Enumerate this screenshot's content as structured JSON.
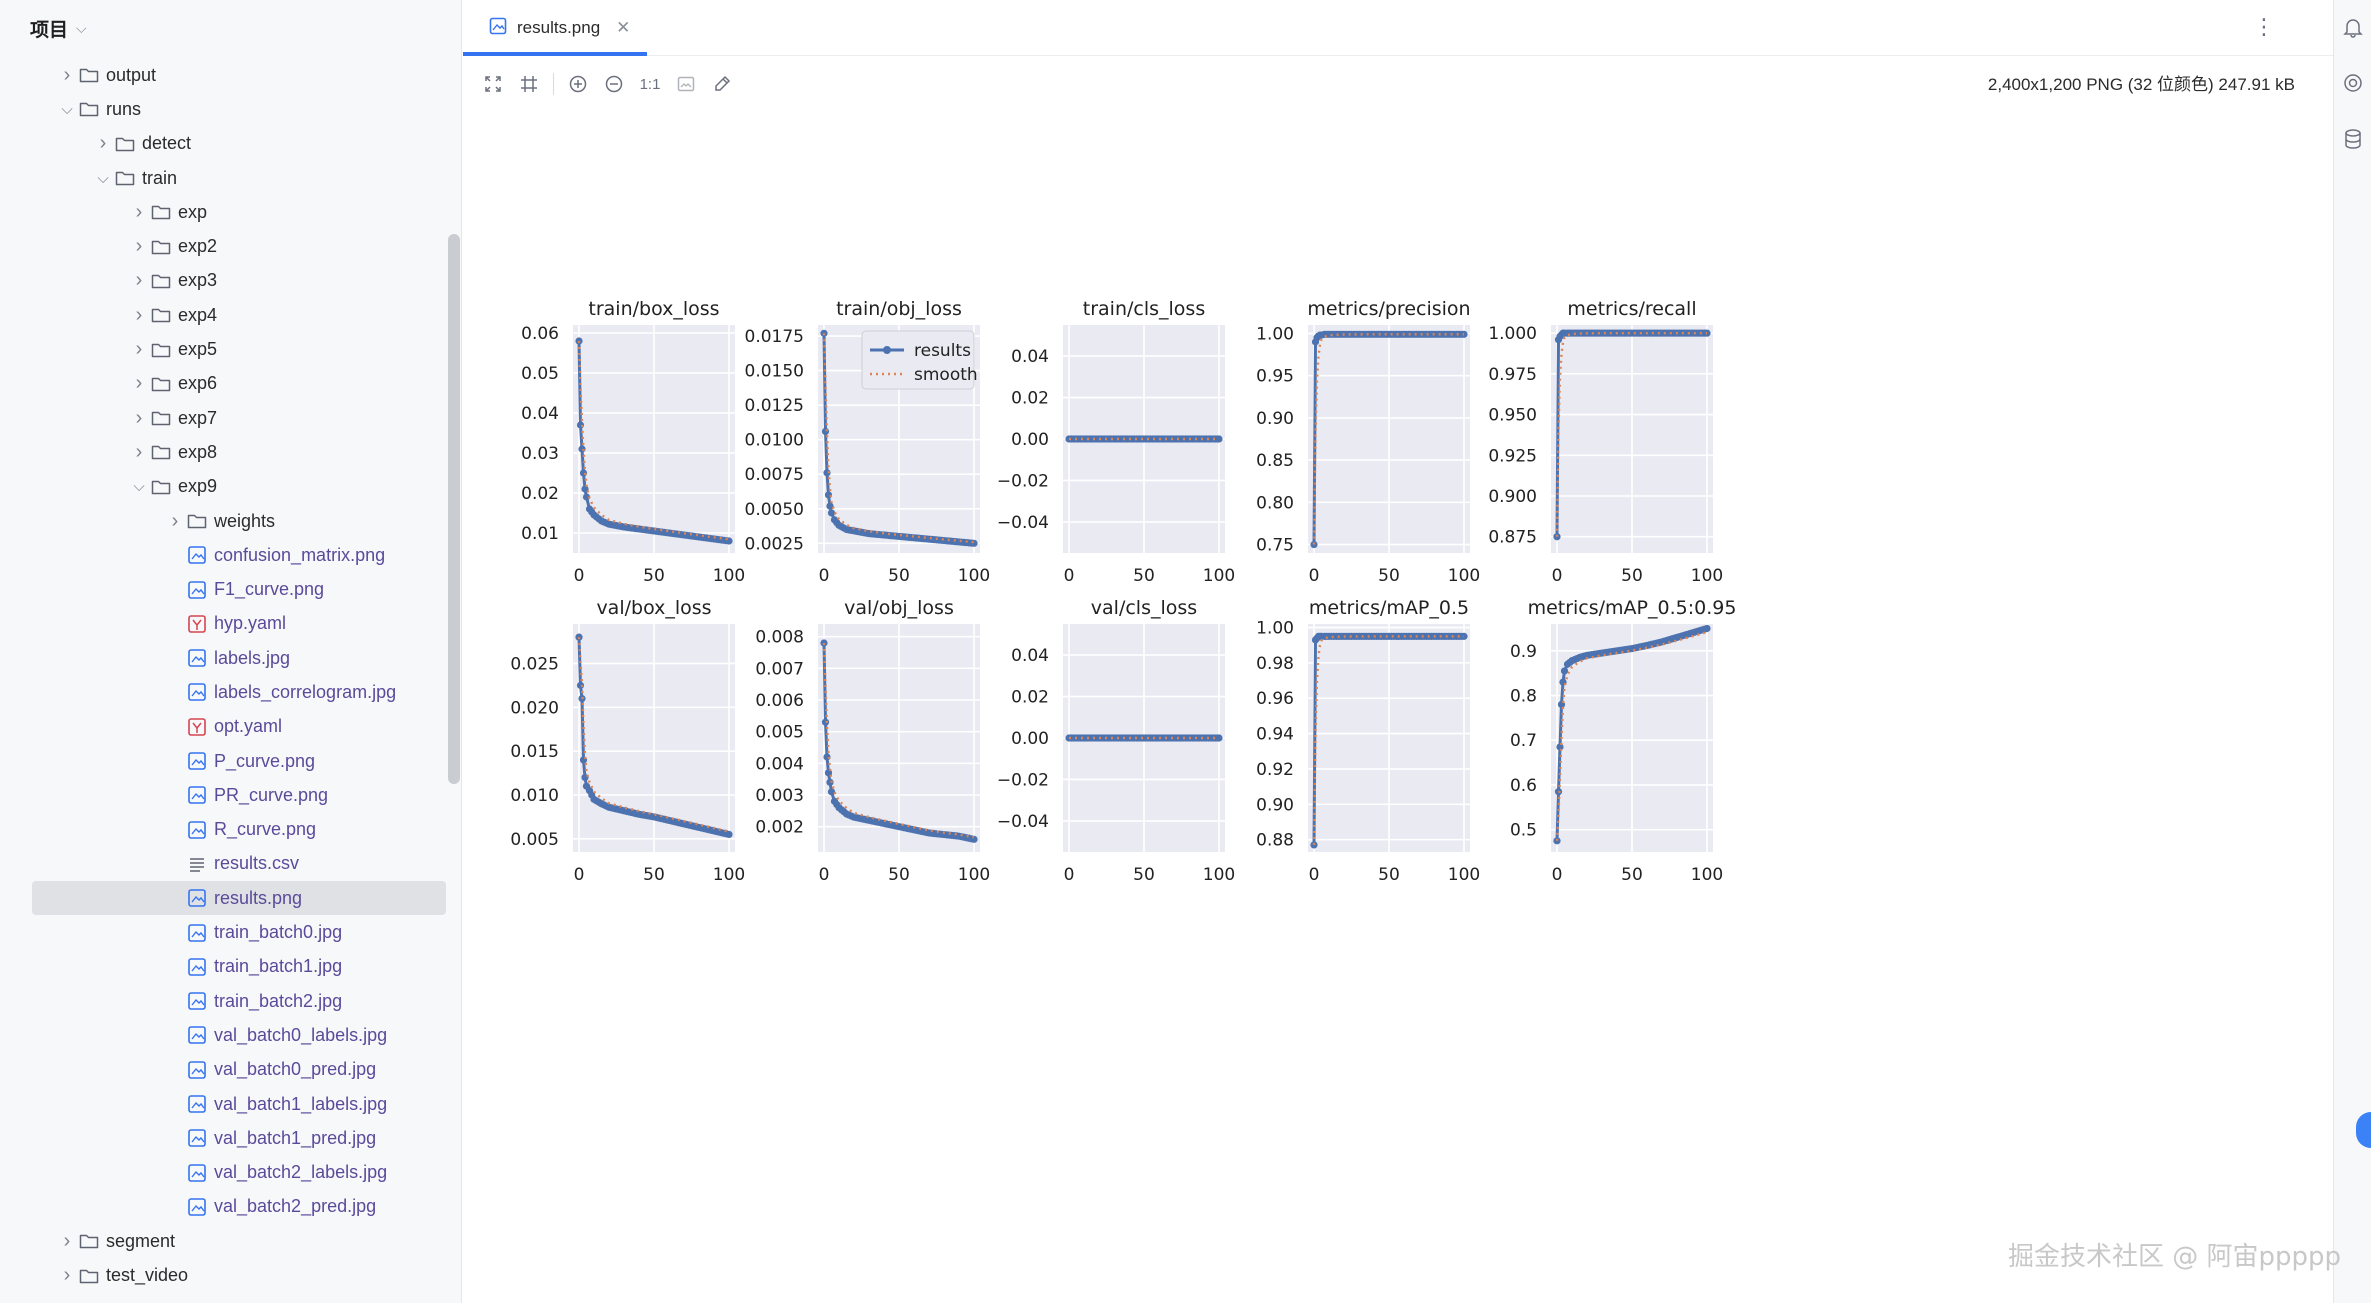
{
  "project": {
    "title": "项目"
  },
  "tree": [
    {
      "label": "output",
      "type": "folder",
      "depth": 0,
      "expanded": false
    },
    {
      "label": "runs",
      "type": "folder",
      "depth": 0,
      "expanded": true
    },
    {
      "label": "detect",
      "type": "folder",
      "depth": 1,
      "expanded": false
    },
    {
      "label": "train",
      "type": "folder",
      "depth": 1,
      "expanded": true
    },
    {
      "label": "exp",
      "type": "folder",
      "depth": 2,
      "expanded": false
    },
    {
      "label": "exp2",
      "type": "folder",
      "depth": 2,
      "expanded": false
    },
    {
      "label": "exp3",
      "type": "folder",
      "depth": 2,
      "expanded": false
    },
    {
      "label": "exp4",
      "type": "folder",
      "depth": 2,
      "expanded": false
    },
    {
      "label": "exp5",
      "type": "folder",
      "depth": 2,
      "expanded": false
    },
    {
      "label": "exp6",
      "type": "folder",
      "depth": 2,
      "expanded": false
    },
    {
      "label": "exp7",
      "type": "folder",
      "depth": 2,
      "expanded": false
    },
    {
      "label": "exp8",
      "type": "folder",
      "depth": 2,
      "expanded": false
    },
    {
      "label": "exp9",
      "type": "folder",
      "depth": 2,
      "expanded": true
    },
    {
      "label": "weights",
      "type": "folder",
      "depth": 3,
      "expanded": false
    },
    {
      "label": "confusion_matrix.png",
      "type": "image",
      "depth": 3
    },
    {
      "label": "F1_curve.png",
      "type": "image",
      "depth": 3
    },
    {
      "label": "hyp.yaml",
      "type": "yaml",
      "depth": 3
    },
    {
      "label": "labels.jpg",
      "type": "image",
      "depth": 3
    },
    {
      "label": "labels_correlogram.jpg",
      "type": "image",
      "depth": 3
    },
    {
      "label": "opt.yaml",
      "type": "yaml",
      "depth": 3
    },
    {
      "label": "P_curve.png",
      "type": "image",
      "depth": 3
    },
    {
      "label": "PR_curve.png",
      "type": "image",
      "depth": 3
    },
    {
      "label": "R_curve.png",
      "type": "image",
      "depth": 3
    },
    {
      "label": "results.csv",
      "type": "text",
      "depth": 3
    },
    {
      "label": "results.png",
      "type": "image",
      "depth": 3,
      "selected": true
    },
    {
      "label": "train_batch0.jpg",
      "type": "image",
      "depth": 3
    },
    {
      "label": "train_batch1.jpg",
      "type": "image",
      "depth": 3
    },
    {
      "label": "train_batch2.jpg",
      "type": "image",
      "depth": 3
    },
    {
      "label": "val_batch0_labels.jpg",
      "type": "image",
      "depth": 3
    },
    {
      "label": "val_batch0_pred.jpg",
      "type": "image",
      "depth": 3
    },
    {
      "label": "val_batch1_labels.jpg",
      "type": "image",
      "depth": 3
    },
    {
      "label": "val_batch1_pred.jpg",
      "type": "image",
      "depth": 3
    },
    {
      "label": "val_batch2_labels.jpg",
      "type": "image",
      "depth": 3
    },
    {
      "label": "val_batch2_pred.jpg",
      "type": "image",
      "depth": 3
    },
    {
      "label": "segment",
      "type": "folder",
      "depth": 0,
      "expanded": false
    },
    {
      "label": "test_video",
      "type": "folder",
      "depth": 0,
      "expanded": false
    }
  ],
  "editor": {
    "tab_label": "results.png",
    "image_info": "2,400x1,200 PNG (32 位颜色) 247.91 kB",
    "zoom_label": "1:1"
  },
  "watermark": "掘金技术社区 @ 阿宙ppppp",
  "colors": {
    "accent": "#3574f0",
    "series": "#4c72b0",
    "smooth": "#dd8452",
    "plot_bg": "#eaeaf2"
  },
  "chart_data": [
    {
      "type": "line",
      "title": "train/box_loss",
      "xlim": [
        0,
        100
      ],
      "xticks": [
        0,
        50,
        100
      ],
      "ylim": [
        0.005,
        0.062
      ],
      "yticks": [
        "0.01",
        "0.02",
        "0.03",
        "0.04",
        "0.05",
        "0.06"
      ],
      "ytick_values": [
        0.01,
        0.02,
        0.03,
        0.04,
        0.05,
        0.06
      ],
      "x": [
        0,
        1,
        2,
        3,
        4,
        5,
        7,
        10,
        15,
        20,
        30,
        40,
        50,
        60,
        70,
        80,
        90,
        100
      ],
      "y": [
        0.058,
        0.037,
        0.031,
        0.025,
        0.021,
        0.019,
        0.016,
        0.0145,
        0.013,
        0.0122,
        0.0115,
        0.011,
        0.0105,
        0.01,
        0.0095,
        0.009,
        0.0085,
        0.008
      ],
      "legend": false
    },
    {
      "type": "line",
      "title": "train/obj_loss",
      "xlim": [
        0,
        100
      ],
      "xticks": [
        0,
        50,
        100
      ],
      "ylim": [
        0.0018,
        0.0183
      ],
      "yticks": [
        "0.0025",
        "0.0050",
        "0.0075",
        "0.0100",
        "0.0125",
        "0.0150",
        "0.0175"
      ],
      "ytick_values": [
        0.0025,
        0.005,
        0.0075,
        0.01,
        0.0125,
        0.015,
        0.0175
      ],
      "x": [
        0,
        1,
        2,
        3,
        4,
        5,
        7,
        10,
        15,
        20,
        30,
        40,
        50,
        60,
        70,
        80,
        90,
        100
      ],
      "y": [
        0.0177,
        0.0106,
        0.0076,
        0.006,
        0.0052,
        0.0047,
        0.0042,
        0.0038,
        0.0035,
        0.0034,
        0.0032,
        0.0031,
        0.003,
        0.0029,
        0.0028,
        0.0027,
        0.0026,
        0.0025
      ],
      "legend": true,
      "legend_labels": [
        "results",
        "smooth"
      ]
    },
    {
      "type": "line",
      "title": "train/cls_loss",
      "xlim": [
        0,
        100
      ],
      "xticks": [
        0,
        50,
        100
      ],
      "ylim": [
        -0.055,
        0.055
      ],
      "yticks": [
        "−0.04",
        "−0.02",
        "0.00",
        "0.02",
        "0.04"
      ],
      "ytick_values": [
        -0.04,
        -0.02,
        0,
        0.02,
        0.04
      ],
      "x": [
        0,
        100
      ],
      "y": [
        0,
        0
      ],
      "flat": true,
      "legend": false
    },
    {
      "type": "line",
      "title": "metrics/precision",
      "xlim": [
        0,
        100
      ],
      "xticks": [
        0,
        50,
        100
      ],
      "ylim": [
        0.74,
        1.01
      ],
      "yticks": [
        "0.75",
        "0.80",
        "0.85",
        "0.90",
        "0.95",
        "1.00"
      ],
      "ytick_values": [
        0.75,
        0.8,
        0.85,
        0.9,
        0.95,
        1.0
      ],
      "x": [
        0,
        1,
        2,
        3,
        4,
        5,
        7,
        10,
        15,
        20,
        30,
        40,
        50,
        60,
        70,
        80,
        90,
        100
      ],
      "y": [
        0.75,
        0.99,
        0.995,
        0.997,
        0.998,
        0.998,
        0.999,
        0.999,
        0.999,
        0.999,
        0.999,
        0.999,
        0.999,
        0.999,
        0.999,
        0.999,
        0.999,
        0.999
      ],
      "legend": false
    },
    {
      "type": "line",
      "title": "metrics/recall",
      "xlim": [
        0,
        100
      ],
      "xticks": [
        0,
        50,
        100
      ],
      "ylim": [
        0.865,
        1.005
      ],
      "yticks": [
        "0.875",
        "0.900",
        "0.925",
        "0.950",
        "0.975",
        "1.000"
      ],
      "ytick_values": [
        0.875,
        0.9,
        0.925,
        0.95,
        0.975,
        1.0
      ],
      "x": [
        0,
        1,
        2,
        3,
        4,
        5,
        7,
        10,
        15,
        20,
        30,
        40,
        50,
        60,
        70,
        80,
        90,
        100
      ],
      "y": [
        0.875,
        0.996,
        0.998,
        0.999,
        1.0,
        1.0,
        1.0,
        1.0,
        1.0,
        1.0,
        1.0,
        1.0,
        1.0,
        1.0,
        1.0,
        1.0,
        1.0,
        1.0
      ],
      "legend": false
    },
    {
      "type": "line",
      "title": "val/box_loss",
      "xlim": [
        0,
        100
      ],
      "xticks": [
        0,
        50,
        100
      ],
      "ylim": [
        0.0035,
        0.0295
      ],
      "yticks": [
        "0.005",
        "0.010",
        "0.015",
        "0.020",
        "0.025"
      ],
      "ytick_values": [
        0.005,
        0.01,
        0.015,
        0.02,
        0.025
      ],
      "x": [
        0,
        1,
        2,
        3,
        4,
        5,
        7,
        10,
        15,
        20,
        30,
        40,
        50,
        60,
        70,
        80,
        90,
        100
      ],
      "y": [
        0.028,
        0.0225,
        0.021,
        0.014,
        0.012,
        0.011,
        0.0105,
        0.0095,
        0.009,
        0.0086,
        0.0082,
        0.0078,
        0.0075,
        0.0071,
        0.0067,
        0.0063,
        0.0059,
        0.0055
      ],
      "legend": false
    },
    {
      "type": "line",
      "title": "val/obj_loss",
      "xlim": [
        0,
        100
      ],
      "xticks": [
        0,
        50,
        100
      ],
      "ylim": [
        0.0012,
        0.0084
      ],
      "yticks": [
        "0.002",
        "0.003",
        "0.004",
        "0.005",
        "0.006",
        "0.007",
        "0.008"
      ],
      "ytick_values": [
        0.002,
        0.003,
        0.004,
        0.005,
        0.006,
        0.007,
        0.008
      ],
      "x": [
        0,
        1,
        2,
        3,
        4,
        5,
        7,
        10,
        15,
        20,
        30,
        40,
        50,
        60,
        70,
        80,
        90,
        100
      ],
      "y": [
        0.0078,
        0.0053,
        0.0042,
        0.0037,
        0.0034,
        0.0031,
        0.0028,
        0.0026,
        0.0024,
        0.0023,
        0.0022,
        0.0021,
        0.002,
        0.0019,
        0.0018,
        0.00175,
        0.0017,
        0.0016
      ],
      "legend": false
    },
    {
      "type": "line",
      "title": "val/cls_loss",
      "xlim": [
        0,
        100
      ],
      "xticks": [
        0,
        50,
        100
      ],
      "ylim": [
        -0.055,
        0.055
      ],
      "yticks": [
        "−0.04",
        "−0.02",
        "0.00",
        "0.02",
        "0.04"
      ],
      "ytick_values": [
        -0.04,
        -0.02,
        0,
        0.02,
        0.04
      ],
      "x": [
        0,
        100
      ],
      "y": [
        0,
        0
      ],
      "flat": true,
      "legend": false
    },
    {
      "type": "line",
      "title": "metrics/mAP_0.5",
      "xlim": [
        0,
        100
      ],
      "xticks": [
        0,
        50,
        100
      ],
      "ylim": [
        0.873,
        1.002
      ],
      "yticks": [
        "0.88",
        "0.90",
        "0.92",
        "0.94",
        "0.96",
        "0.98",
        "1.00"
      ],
      "ytick_values": [
        0.88,
        0.9,
        0.92,
        0.94,
        0.96,
        0.98,
        1.0
      ],
      "x": [
        0,
        1,
        2,
        3,
        4,
        5,
        7,
        10,
        15,
        20,
        30,
        40,
        50,
        60,
        70,
        80,
        90,
        100
      ],
      "y": [
        0.877,
        0.993,
        0.994,
        0.995,
        0.995,
        0.995,
        0.995,
        0.995,
        0.995,
        0.995,
        0.995,
        0.995,
        0.995,
        0.995,
        0.995,
        0.995,
        0.995,
        0.995
      ],
      "legend": false
    },
    {
      "type": "line",
      "title": "metrics/mAP_0.5:0.95",
      "xlim": [
        0,
        100
      ],
      "xticks": [
        0,
        50,
        100
      ],
      "ylim": [
        0.45,
        0.96
      ],
      "yticks": [
        "0.5",
        "0.6",
        "0.7",
        "0.8",
        "0.9"
      ],
      "ytick_values": [
        0.5,
        0.6,
        0.7,
        0.8,
        0.9
      ],
      "x": [
        0,
        1,
        2,
        3,
        4,
        5,
        7,
        10,
        15,
        20,
        30,
        40,
        50,
        60,
        70,
        80,
        90,
        100
      ],
      "y": [
        0.475,
        0.585,
        0.685,
        0.78,
        0.83,
        0.855,
        0.87,
        0.878,
        0.885,
        0.89,
        0.895,
        0.9,
        0.905,
        0.912,
        0.92,
        0.93,
        0.94,
        0.95
      ],
      "legend": false
    }
  ]
}
